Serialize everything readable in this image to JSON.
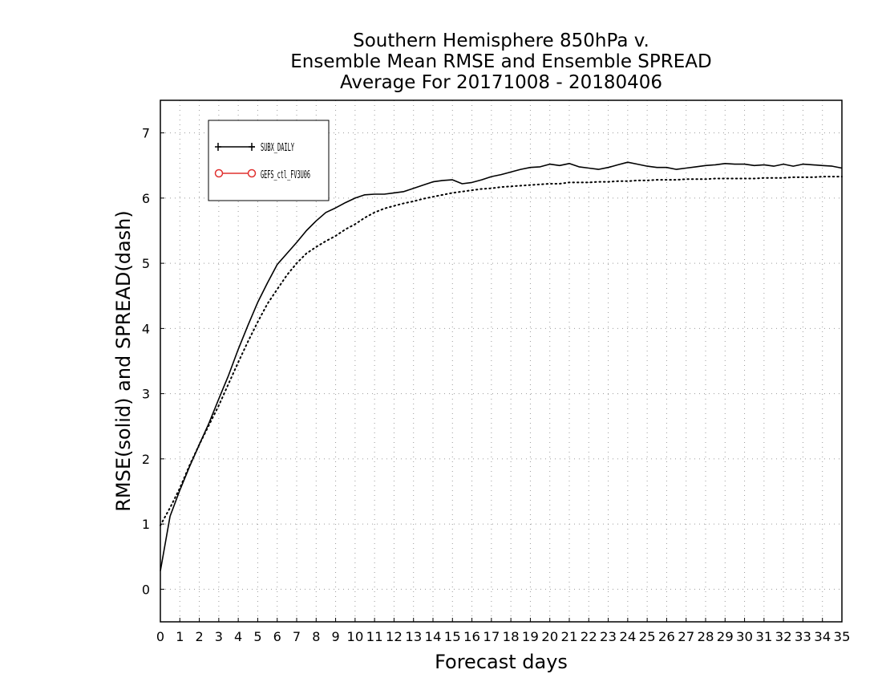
{
  "chart_data": {
    "type": "line",
    "title": [
      "Southern Hemisphere 850hPa v.",
      "Ensemble Mean RMSE and Ensemble SPREAD",
      "Average For 20171008 - 20180406"
    ],
    "xlabel": "Forecast days",
    "ylabel": "RMSE(solid) and SPREAD(dash)",
    "xlim": [
      0,
      35
    ],
    "ylim": [
      -0.5,
      7.5
    ],
    "xticks": [
      0,
      1,
      2,
      3,
      4,
      5,
      6,
      7,
      8,
      9,
      10,
      11,
      12,
      13,
      14,
      15,
      16,
      17,
      18,
      19,
      20,
      21,
      22,
      23,
      24,
      25,
      26,
      27,
      28,
      29,
      30,
      31,
      32,
      33,
      34,
      35
    ],
    "yticks": [
      0,
      1,
      2,
      3,
      4,
      5,
      6,
      7
    ],
    "grid": true,
    "legend_position": "top-left",
    "legend": [
      {
        "name": "SUBX_DAILY",
        "color": "#000000",
        "marker": "plus"
      },
      {
        "name": "GEFS_ctl_FV3U06",
        "color": "#e0302f",
        "marker": "circle"
      }
    ],
    "series": [
      {
        "name": "SUBX_DAILY",
        "metric": "RMSE",
        "style": "solid",
        "color": "#000000",
        "x": [
          0,
          0.5,
          1,
          1.5,
          2,
          2.5,
          3,
          3.5,
          4,
          4.5,
          5,
          5.5,
          6,
          6.5,
          7,
          7.5,
          8,
          8.5,
          9,
          9.5,
          10,
          10.5,
          11,
          11.5,
          12,
          12.5,
          13,
          13.5,
          14,
          14.5,
          15,
          15.5,
          16,
          16.5,
          17,
          17.5,
          18,
          18.5,
          19,
          19.5,
          20,
          20.5,
          21,
          21.5,
          22,
          22.5,
          23,
          23.5,
          24,
          24.5,
          25,
          25.5,
          26,
          26.5,
          27,
          27.5,
          28,
          28.5,
          29,
          29.5,
          30,
          30.5,
          31,
          31.5,
          32,
          32.5,
          33,
          33.5,
          34,
          34.5,
          35
        ],
        "y": [
          0.28,
          1.12,
          1.52,
          1.88,
          2.22,
          2.55,
          2.92,
          3.28,
          3.68,
          4.05,
          4.4,
          4.7,
          4.98,
          5.15,
          5.32,
          5.5,
          5.65,
          5.78,
          5.85,
          5.93,
          6.0,
          6.05,
          6.06,
          6.06,
          6.08,
          6.1,
          6.15,
          6.2,
          6.25,
          6.27,
          6.28,
          6.22,
          6.24,
          6.28,
          6.33,
          6.36,
          6.4,
          6.44,
          6.47,
          6.48,
          6.52,
          6.5,
          6.53,
          6.48,
          6.46,
          6.44,
          6.47,
          6.51,
          6.55,
          6.52,
          6.49,
          6.47,
          6.47,
          6.44,
          6.46,
          6.48,
          6.5,
          6.51,
          6.53,
          6.52,
          6.52,
          6.5,
          6.51,
          6.49,
          6.52,
          6.49,
          6.52,
          6.51,
          6.5,
          6.49,
          6.46
        ]
      },
      {
        "name": "GEFS_ctl_FV3U06",
        "metric": "SPREAD",
        "style": "dotted",
        "color": "#000000",
        "x": [
          0,
          0.5,
          1,
          1.5,
          2,
          2.5,
          3,
          3.5,
          4,
          4.5,
          5,
          5.5,
          6,
          6.5,
          7,
          7.5,
          8,
          8.5,
          9,
          9.5,
          10,
          10.5,
          11,
          11.5,
          12,
          12.5,
          13,
          13.5,
          14,
          14.5,
          15,
          15.5,
          16,
          16.5,
          17,
          17.5,
          18,
          18.5,
          19,
          19.5,
          20,
          20.5,
          21,
          21.5,
          22,
          22.5,
          23,
          23.5,
          24,
          24.5,
          25,
          25.5,
          26,
          26.5,
          27,
          27.5,
          28,
          28.5,
          29,
          29.5,
          30,
          30.5,
          31,
          31.5,
          32,
          32.5,
          33,
          33.5,
          34,
          34.5,
          35
        ],
        "y": [
          0.98,
          1.25,
          1.55,
          1.9,
          2.22,
          2.52,
          2.82,
          3.15,
          3.48,
          3.8,
          4.1,
          4.38,
          4.6,
          4.82,
          5.0,
          5.15,
          5.25,
          5.34,
          5.42,
          5.52,
          5.6,
          5.7,
          5.78,
          5.84,
          5.88,
          5.92,
          5.95,
          5.99,
          6.02,
          6.05,
          6.08,
          6.1,
          6.12,
          6.14,
          6.15,
          6.17,
          6.18,
          6.19,
          6.2,
          6.21,
          6.22,
          6.22,
          6.24,
          6.24,
          6.24,
          6.25,
          6.25,
          6.26,
          6.26,
          6.27,
          6.27,
          6.28,
          6.28,
          6.28,
          6.29,
          6.29,
          6.29,
          6.3,
          6.3,
          6.3,
          6.3,
          6.3,
          6.31,
          6.31,
          6.31,
          6.32,
          6.32,
          6.32,
          6.33,
          6.33,
          6.33
        ]
      }
    ]
  }
}
